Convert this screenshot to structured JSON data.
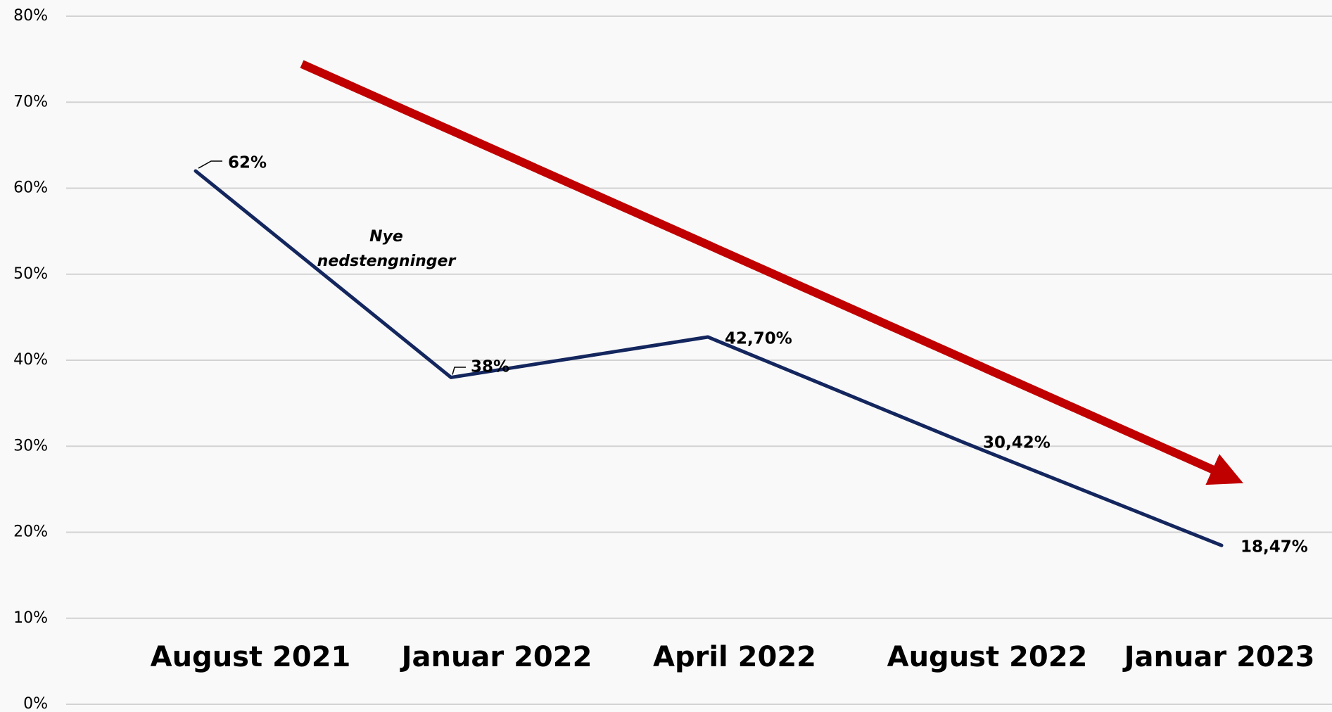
{
  "chart_data": {
    "type": "line",
    "categories": [
      "August 2021",
      "Januar 2022",
      "April 2022",
      "August 2022",
      "Januar 2023"
    ],
    "values": [
      62,
      38,
      42.7,
      30.42,
      18.47
    ],
    "value_labels": [
      "62%",
      "38%",
      "42,70%",
      "30,42%",
      "18,47%"
    ],
    "color": "#14265e",
    "ylim": [
      0,
      80
    ],
    "yticks": [
      {
        "value": 0,
        "label": "0%"
      },
      {
        "value": 10,
        "label": "10%"
      },
      {
        "value": 20,
        "label": "20%"
      },
      {
        "value": 30,
        "label": "30%"
      },
      {
        "value": 40,
        "label": "40%"
      },
      {
        "value": 50,
        "label": "50%"
      },
      {
        "value": 60,
        "label": "60%"
      },
      {
        "value": 70,
        "label": "70%"
      },
      {
        "value": 80,
        "label": "80%"
      }
    ],
    "grid": true,
    "annotation": [
      "Nye",
      "nedstengninger"
    ]
  }
}
